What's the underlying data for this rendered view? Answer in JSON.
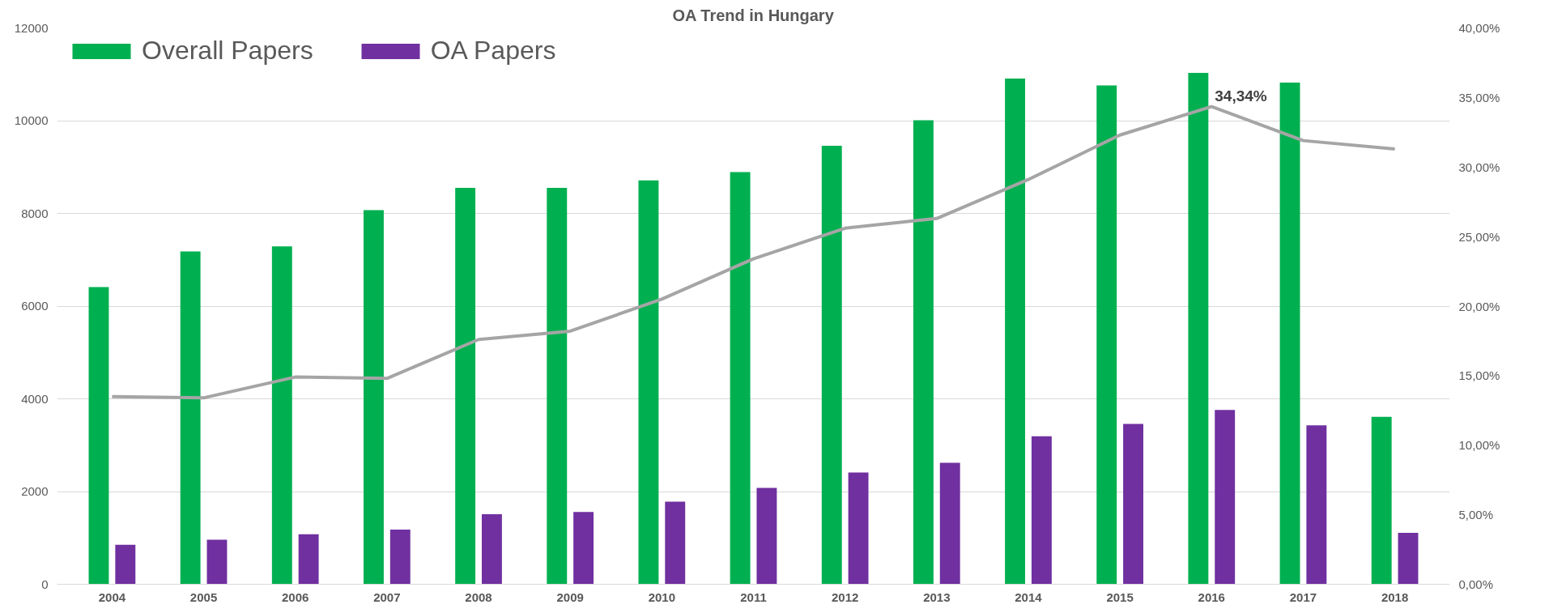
{
  "chart_data": {
    "type": "bar",
    "title": "OA Trend in Hungary",
    "categories": [
      "2004",
      "2005",
      "2006",
      "2007",
      "2008",
      "2009",
      "2010",
      "2011",
      "2012",
      "2013",
      "2014",
      "2015",
      "2016",
      "2017",
      "2018"
    ],
    "series": [
      {
        "name": "Overall Papers",
        "color": "#00b050",
        "values": [
          6410,
          7180,
          7290,
          8070,
          8550,
          8550,
          8710,
          8890,
          9460,
          10010,
          10910,
          10760,
          11030,
          10820,
          3610
        ]
      },
      {
        "name": "OA Papers",
        "color": "#7030a0",
        "values": [
          850,
          960,
          1080,
          1180,
          1510,
          1560,
          1780,
          2080,
          2410,
          2620,
          3190,
          3460,
          3760,
          3430,
          1110
        ]
      },
      {
        "type": "line",
        "axis": "y2",
        "color": "#a5a5a5",
        "values": [
          13.5,
          13.4,
          14.9,
          14.8,
          17.6,
          18.2,
          20.5,
          23.4,
          25.6,
          26.3,
          29.1,
          32.3,
          34.34,
          31.9,
          31.3
        ],
        "value_labels": [
          null,
          null,
          null,
          null,
          null,
          null,
          null,
          null,
          null,
          null,
          null,
          null,
          "34,34%",
          null,
          null
        ]
      }
    ],
    "ylim": [
      0,
      12000
    ],
    "yticks": [
      0,
      2000,
      4000,
      6000,
      8000,
      10000,
      12000
    ],
    "y2lim": [
      0,
      40
    ],
    "y2ticks": [
      {
        "value": 0,
        "label": "0,00%"
      },
      {
        "value": 5,
        "label": "5,00%"
      },
      {
        "value": 10,
        "label": "10,00%"
      },
      {
        "value": 15,
        "label": "15,00%"
      },
      {
        "value": 20,
        "label": "20,00%"
      },
      {
        "value": 25,
        "label": "25,00%"
      },
      {
        "value": 30,
        "label": "30,00%"
      },
      {
        "value": 35,
        "label": "35,00%"
      },
      {
        "value": 40,
        "label": "40,00%"
      }
    ],
    "grid": "y",
    "legend": "top left",
    "line_style": "solid",
    "marker": "none"
  }
}
